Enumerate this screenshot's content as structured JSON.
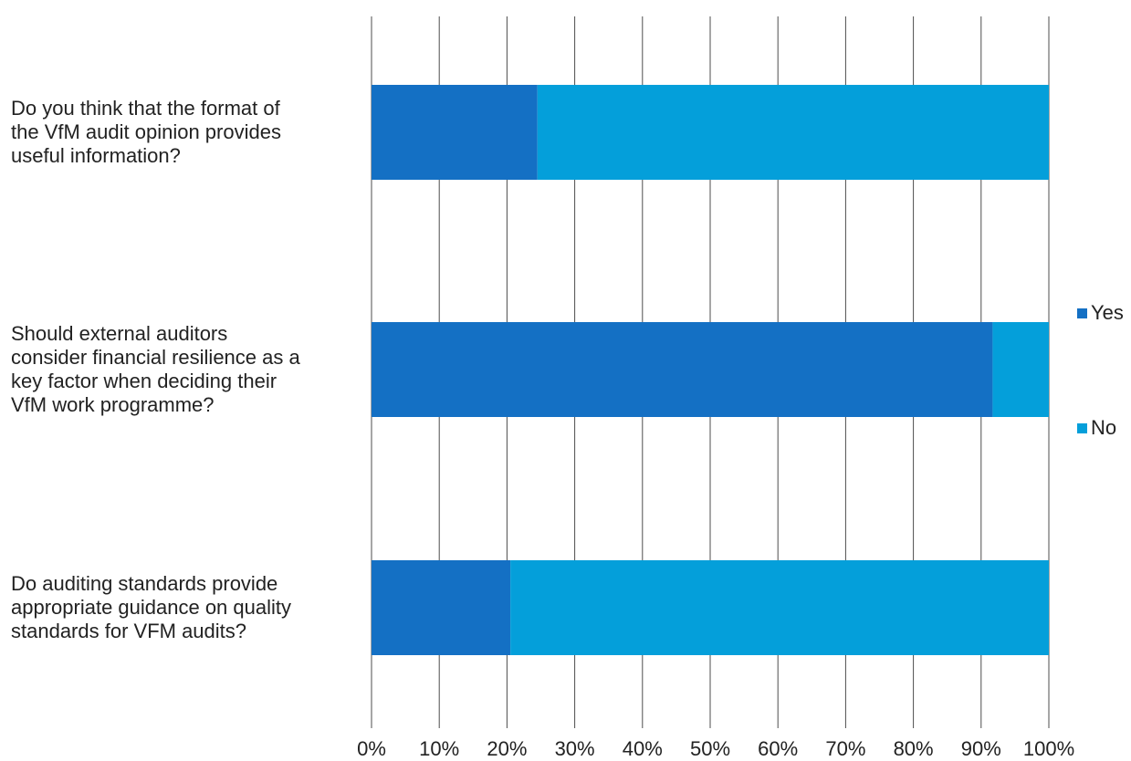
{
  "chart_data": {
    "type": "bar",
    "orientation": "horizontal",
    "stacked": true,
    "categories": [
      "Do you think that the format of\nthe VfM audit opinion provides\nuseful information?",
      "Should external auditors\nconsider financial resilience as a\nkey factor when deciding their\nVfM work programme?",
      "Do auditing standards provide\nappropriate guidance on quality\nstandards for VFM audits?"
    ],
    "series": [
      {
        "name": "Yes",
        "values": [
          24.5,
          91.7,
          20.5
        ],
        "color": "#1470C4"
      },
      {
        "name": "No",
        "values": [
          75.5,
          8.3,
          79.5
        ],
        "color": "#049FDA"
      }
    ],
    "xlim": [
      0,
      100
    ],
    "xticks": [
      "0%",
      "10%",
      "20%",
      "30%",
      "40%",
      "50%",
      "60%",
      "70%",
      "80%",
      "90%",
      "100%"
    ],
    "grid": true,
    "legend_position": "right"
  }
}
